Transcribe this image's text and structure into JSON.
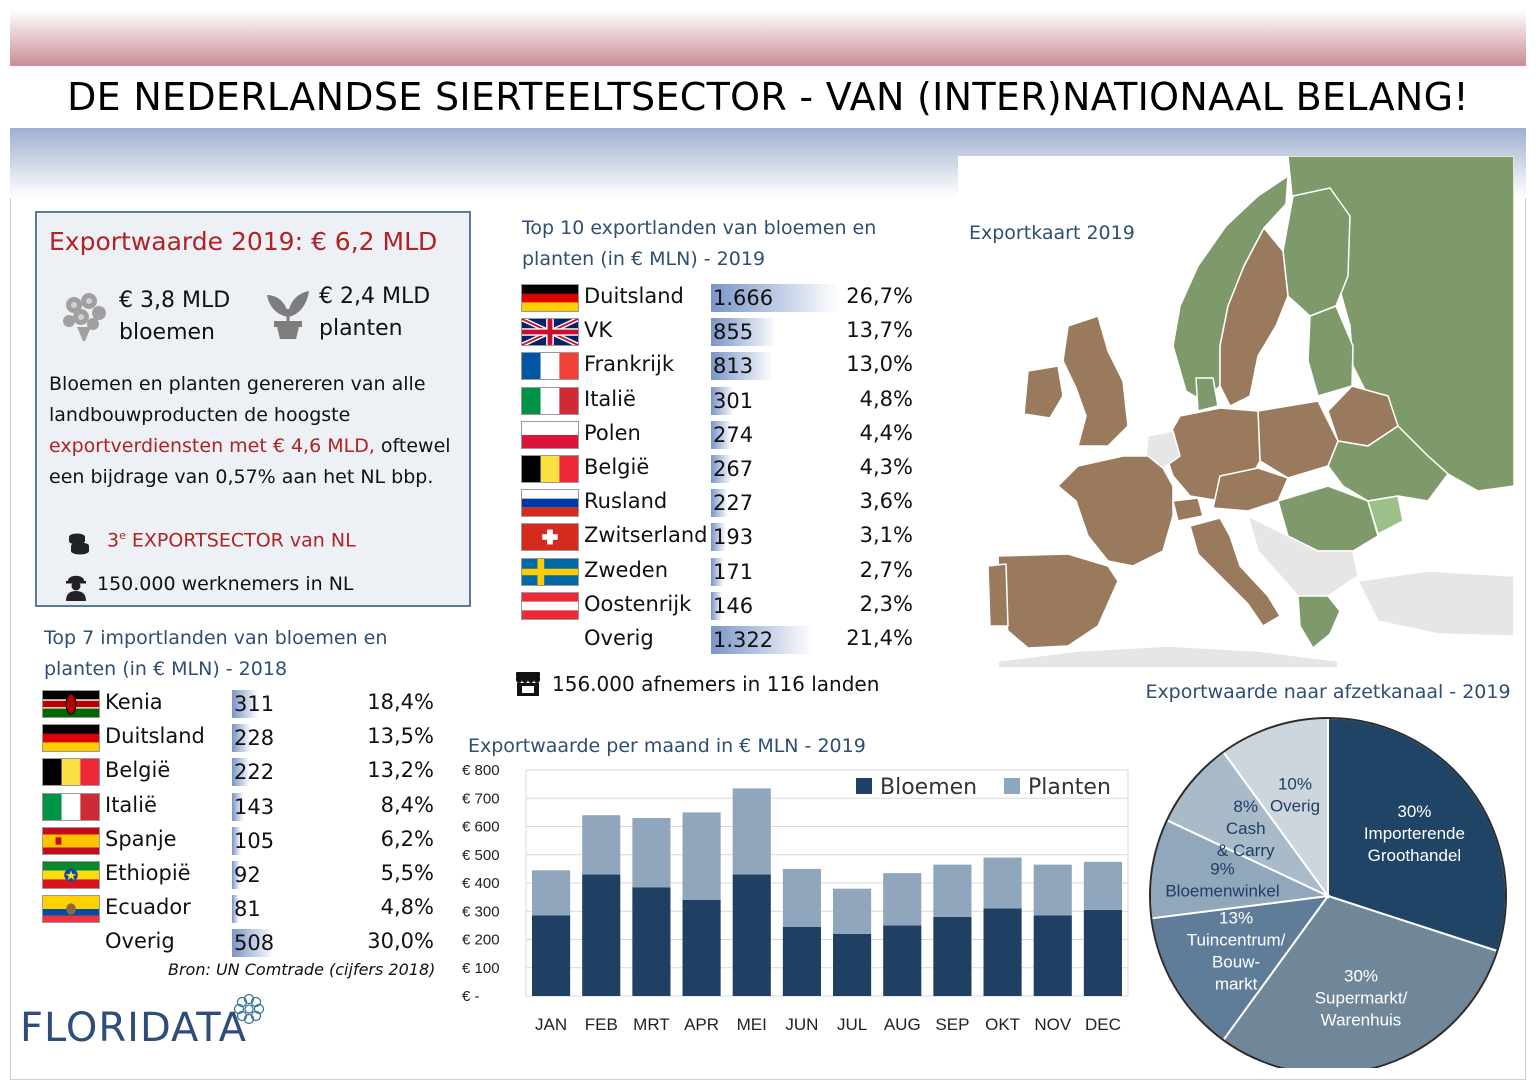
{
  "title": "DE NEDERLANDSE SIERTEELTSECTOR - VAN (INTER)NATIONAAL BELANG!",
  "export_box": {
    "title": "Exportwaarde 2019: € 6,2 MLD",
    "flowers_value": "€ 3,8 MLD",
    "flowers_label": "bloemen",
    "plants_value": "€ 2,4 MLD",
    "plants_label": "planten",
    "desc_part1": "Bloemen en planten genereren van alle landbouwproducten de hoogste",
    "desc_red": "exportverdiensten met € 4,6 MLD,",
    "desc_part2": "oftewel een bijdrage van 0,57% aan het NL bbp.",
    "sector_num": "3",
    "sector_sup": "e",
    "sector_text": " EXPORTSECTOR van NL",
    "workers": "150.000 werknemers in NL",
    "icons": {
      "flowers": "bouquet-icon",
      "plants": "plant-icon",
      "sector": "coins-icon",
      "workers": "worker-icon"
    }
  },
  "export_table": {
    "title_line1": "Top 10 exportlanden van bloemen en",
    "title_line2": "planten (in € MLN) - 2019",
    "rows": [
      {
        "flag": "de",
        "country": "Duitsland",
        "value": "1.666",
        "num": 1666,
        "pct": "26,7%"
      },
      {
        "flag": "gb",
        "country": "VK",
        "value": "855",
        "num": 855,
        "pct": "13,7%"
      },
      {
        "flag": "fr",
        "country": "Frankrijk",
        "value": "813",
        "num": 813,
        "pct": "13,0%"
      },
      {
        "flag": "it",
        "country": "Italië",
        "value": "301",
        "num": 301,
        "pct": "4,8%"
      },
      {
        "flag": "pl",
        "country": "Polen",
        "value": "274",
        "num": 274,
        "pct": "4,4%"
      },
      {
        "flag": "be",
        "country": "België",
        "value": "267",
        "num": 267,
        "pct": "4,3%"
      },
      {
        "flag": "ru",
        "country": "Rusland",
        "value": "227",
        "num": 227,
        "pct": "3,6%"
      },
      {
        "flag": "ch",
        "country": "Zwitserland",
        "value": "193",
        "num": 193,
        "pct": "3,1%"
      },
      {
        "flag": "se",
        "country": "Zweden",
        "value": "171",
        "num": 171,
        "pct": "2,7%"
      },
      {
        "flag": "at",
        "country": "Oostenrijk",
        "value": "146",
        "num": 146,
        "pct": "2,3%"
      },
      {
        "flag": "",
        "country": "Overig",
        "value": "1.322",
        "num": 1322,
        "pct": "21,4%"
      }
    ]
  },
  "customers": {
    "icon": "shop-icon",
    "text": "156.000 afnemers in 116 landen"
  },
  "import_table": {
    "title_line1": "Top 7 importlanden van bloemen en",
    "title_line2": "planten (in €  MLN) - 2018",
    "rows": [
      {
        "flag": "ke",
        "country": "Kenia",
        "value": "311",
        "num": 311,
        "pct": "18,4%"
      },
      {
        "flag": "de",
        "country": "Duitsland",
        "value": "228",
        "num": 228,
        "pct": "13,5%"
      },
      {
        "flag": "be",
        "country": "België",
        "value": "222",
        "num": 222,
        "pct": "13,2%"
      },
      {
        "flag": "it",
        "country": "Italië",
        "value": "143",
        "num": 143,
        "pct": "8,4%"
      },
      {
        "flag": "es",
        "country": "Spanje",
        "value": "105",
        "num": 105,
        "pct": "6,2%"
      },
      {
        "flag": "et",
        "country": "Ethiopië",
        "value": "92",
        "num": 92,
        "pct": "5,5%"
      },
      {
        "flag": "ec",
        "country": "Ecuador",
        "value": "81",
        "num": 81,
        "pct": "4,8%"
      },
      {
        "flag": "",
        "country": "Overig",
        "value": "508",
        "num": 508,
        "pct": "30,0%"
      }
    ],
    "source": "Bron: UN Comtrade (cijfers 2018)"
  },
  "map": {
    "title": "Exportkaart 2019",
    "colors": {
      "sea": "#ffffff",
      "high": "#9a7a5c",
      "medium": "#7f9a6a",
      "low": "#9cc08a",
      "none": "#e6e6e6"
    }
  },
  "logo": {
    "text": "FLORIDATA",
    "icon": "floridata-flower-icon"
  },
  "chart_data": [
    {
      "type": "bar",
      "stacked": true,
      "title": "Exportwaarde per maand in € MLN - 2019",
      "categories": [
        "JAN",
        "FEB",
        "MRT",
        "APR",
        "MEI",
        "JUN",
        "JUL",
        "AUG",
        "SEP",
        "OKT",
        "NOV",
        "DEC"
      ],
      "series": [
        {
          "name": "Bloemen",
          "color": "#1f3f63",
          "values": [
            285,
            430,
            385,
            340,
            430,
            245,
            220,
            250,
            280,
            310,
            285,
            305
          ]
        },
        {
          "name": "Planten",
          "color": "#8fa6bc",
          "values": [
            160,
            210,
            245,
            310,
            305,
            205,
            160,
            185,
            185,
            180,
            180,
            170
          ]
        }
      ],
      "ylim": [
        0,
        800
      ],
      "yticks": [
        "€ -",
        "€ 100",
        "€ 200",
        "€ 300",
        "€ 400",
        "€ 500",
        "€ 600",
        "€ 700",
        "€ 800"
      ],
      "legend": "top-right",
      "grid": true
    },
    {
      "type": "pie",
      "title": "Exportwaarde naar afzetkanaal - 2019",
      "slices": [
        {
          "label_lines": [
            "30%",
            "Importerende",
            "Groothandel"
          ],
          "value": 30,
          "color": "#1f4466"
        },
        {
          "label_lines": [
            "30%",
            "Supermarkt/",
            "Warenhuis"
          ],
          "value": 30,
          "color": "#6f8799"
        },
        {
          "label_lines": [
            "13%",
            "Tuincentrum/",
            "Bouw-",
            "markt"
          ],
          "value": 13,
          "color": "#5f7d98"
        },
        {
          "label_lines": [
            "9%",
            "Bloemenwinkel"
          ],
          "value": 9,
          "color": "#90a7bc"
        },
        {
          "label_lines": [
            "8%",
            "Cash",
            "& Carry"
          ],
          "value": 8,
          "color": "#a9bac9"
        },
        {
          "label_lines": [
            "10%",
            "Overig"
          ],
          "value": 10,
          "color": "#cdd5dd"
        }
      ]
    }
  ]
}
